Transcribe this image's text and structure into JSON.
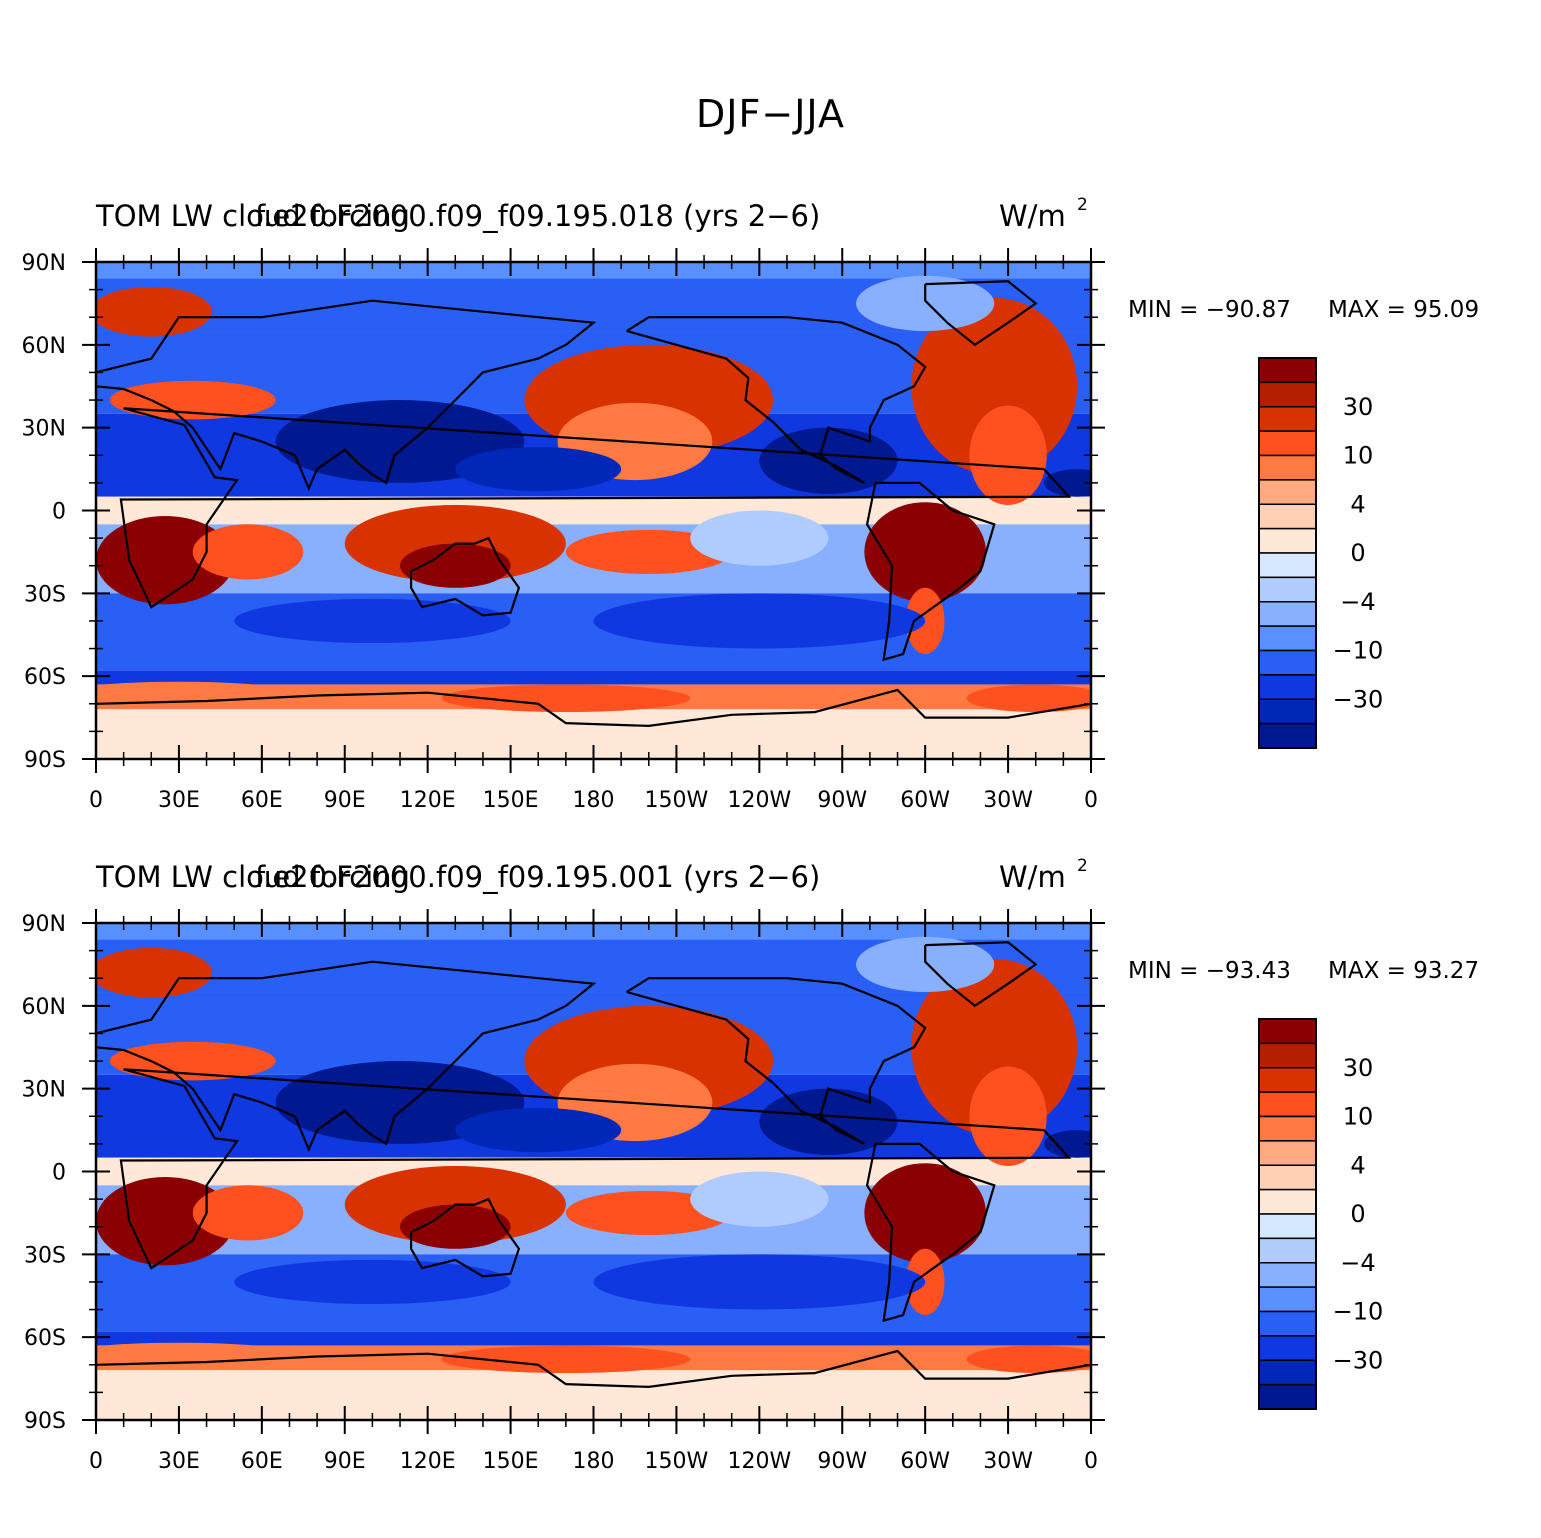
{
  "title": "DJF−JJA",
  "panels": [
    {
      "left_label": "TOM LW cloud forcing",
      "center_label": "f.e20.F2000.f09_f09.195.018 (yrs 2−6)",
      "units": "W/m",
      "units_sup": "2",
      "min_label": "MIN = −90.87",
      "max_label": "MAX = 95.09"
    },
    {
      "left_label": "TOM LW cloud forcing",
      "center_label": "f.e20.F2000.f09_f09.195.001 (yrs 2−6)",
      "units": "W/m",
      "units_sup": "2",
      "min_label": "MIN = −93.43",
      "max_label": "MAX = 93.27"
    }
  ],
  "axes": {
    "lat_labels": [
      "90N",
      "60N",
      "30N",
      "0",
      "30S",
      "60S",
      "90S"
    ],
    "lon_labels": [
      "0",
      "30E",
      "60E",
      "90E",
      "120E",
      "150E",
      "180",
      "150W",
      "120W",
      "90W",
      "60W",
      "30W",
      "0"
    ]
  },
  "colorbar": {
    "colors": [
      "#8b0000",
      "#b22000",
      "#d83200",
      "#ff5020",
      "#ff7a42",
      "#ffaa80",
      "#ffd0b4",
      "#ffe8d8",
      "#d6e8ff",
      "#b0ccff",
      "#88b0ff",
      "#5890ff",
      "#2a5ff5",
      "#1038e0",
      "#0028b8",
      "#001890"
    ],
    "labels": [
      "30",
      "10",
      "4",
      "0",
      "−4",
      "−10",
      "−30"
    ]
  },
  "chart_data": {
    "type": "map",
    "variable": "TOM LW cloud forcing",
    "units": "W/m2",
    "season_difference": "DJF−JJA",
    "contour_levels_shown": [
      30,
      10,
      4,
      0,
      -4,
      -10,
      -30
    ],
    "panels": [
      {
        "case": "f.e20.F2000.f09_f09.195.018",
        "years": "2−6",
        "min": -90.87,
        "max": 95.09
      },
      {
        "case": "f.e20.F2000.f09_f09.195.001",
        "years": "2−6",
        "min": -93.43,
        "max": 93.27
      }
    ]
  }
}
